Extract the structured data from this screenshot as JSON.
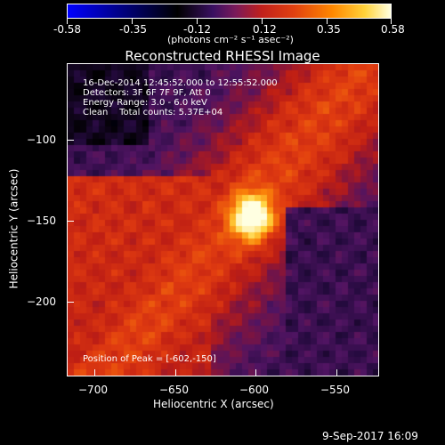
{
  "colorbar": {
    "ticks": [
      "-0.58",
      "-0.35",
      "-0.12",
      "0.12",
      "0.35",
      "0.58"
    ],
    "units": "(photons cm⁻² s⁻¹ asec⁻²)"
  },
  "title": "Reconstructed RHESSI Image",
  "info": {
    "time_range": "16-Dec-2014 12:45:52.000 to 12:55:52.000",
    "detectors": "Detectors: 3F 6F 7F 9F, Att 0",
    "energy": "Energy Range: 3.0 - 6.0 keV",
    "clean": "Clean    Total counts: 5.37E+04",
    "peak": "Position of Peak = [-602,-150]"
  },
  "axes": {
    "x_label": "Heliocentric X (arcsec)",
    "y_label": "Heliocentric Y (arcsec)",
    "x_ticks": [
      "−700",
      "−650",
      "−600",
      "−550"
    ],
    "y_ticks": [
      "−100",
      "−150",
      "−200"
    ]
  },
  "footer": {
    "date": "9-Sep-2017 16:09"
  },
  "colors": {
    "background": "#000000",
    "text": "#ffffff"
  }
}
